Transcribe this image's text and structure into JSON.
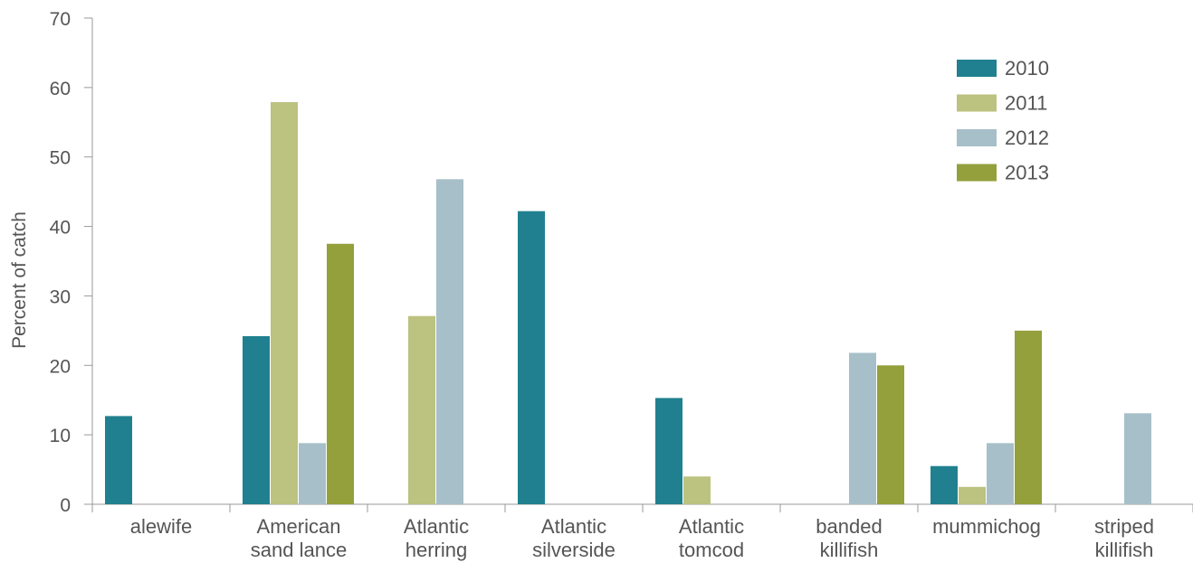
{
  "chart_data": {
    "type": "bar",
    "title": "",
    "xlabel": "",
    "ylabel": "Percent of catch",
    "ylim": [
      0,
      70
    ],
    "yticks": [
      0,
      10,
      20,
      30,
      40,
      50,
      60,
      70
    ],
    "grid": false,
    "legend_position": "top-right",
    "categories": [
      [
        "alewife"
      ],
      [
        "American",
        "sand lance"
      ],
      [
        "Atlantic",
        "herring"
      ],
      [
        "Atlantic",
        "silverside"
      ],
      [
        "Atlantic",
        "tomcod"
      ],
      [
        "banded",
        "killifish"
      ],
      [
        "mummichog"
      ],
      [
        "striped",
        "killifish"
      ]
    ],
    "series": [
      {
        "name": "2010",
        "color": "#20808f",
        "values": [
          12.7,
          24.2,
          0,
          42.2,
          15.3,
          0,
          5.5,
          0
        ]
      },
      {
        "name": "2011",
        "color": "#bcc27f",
        "values": [
          0,
          57.9,
          27.1,
          0,
          4.0,
          0,
          2.5,
          0
        ]
      },
      {
        "name": "2012",
        "color": "#a7bfc8",
        "values": [
          0,
          8.8,
          46.8,
          0,
          0,
          21.8,
          8.8,
          13.1
        ]
      },
      {
        "name": "2013",
        "color": "#94a03c",
        "values": [
          0,
          37.5,
          0,
          0,
          0,
          20.0,
          25.0,
          0
        ]
      }
    ]
  }
}
